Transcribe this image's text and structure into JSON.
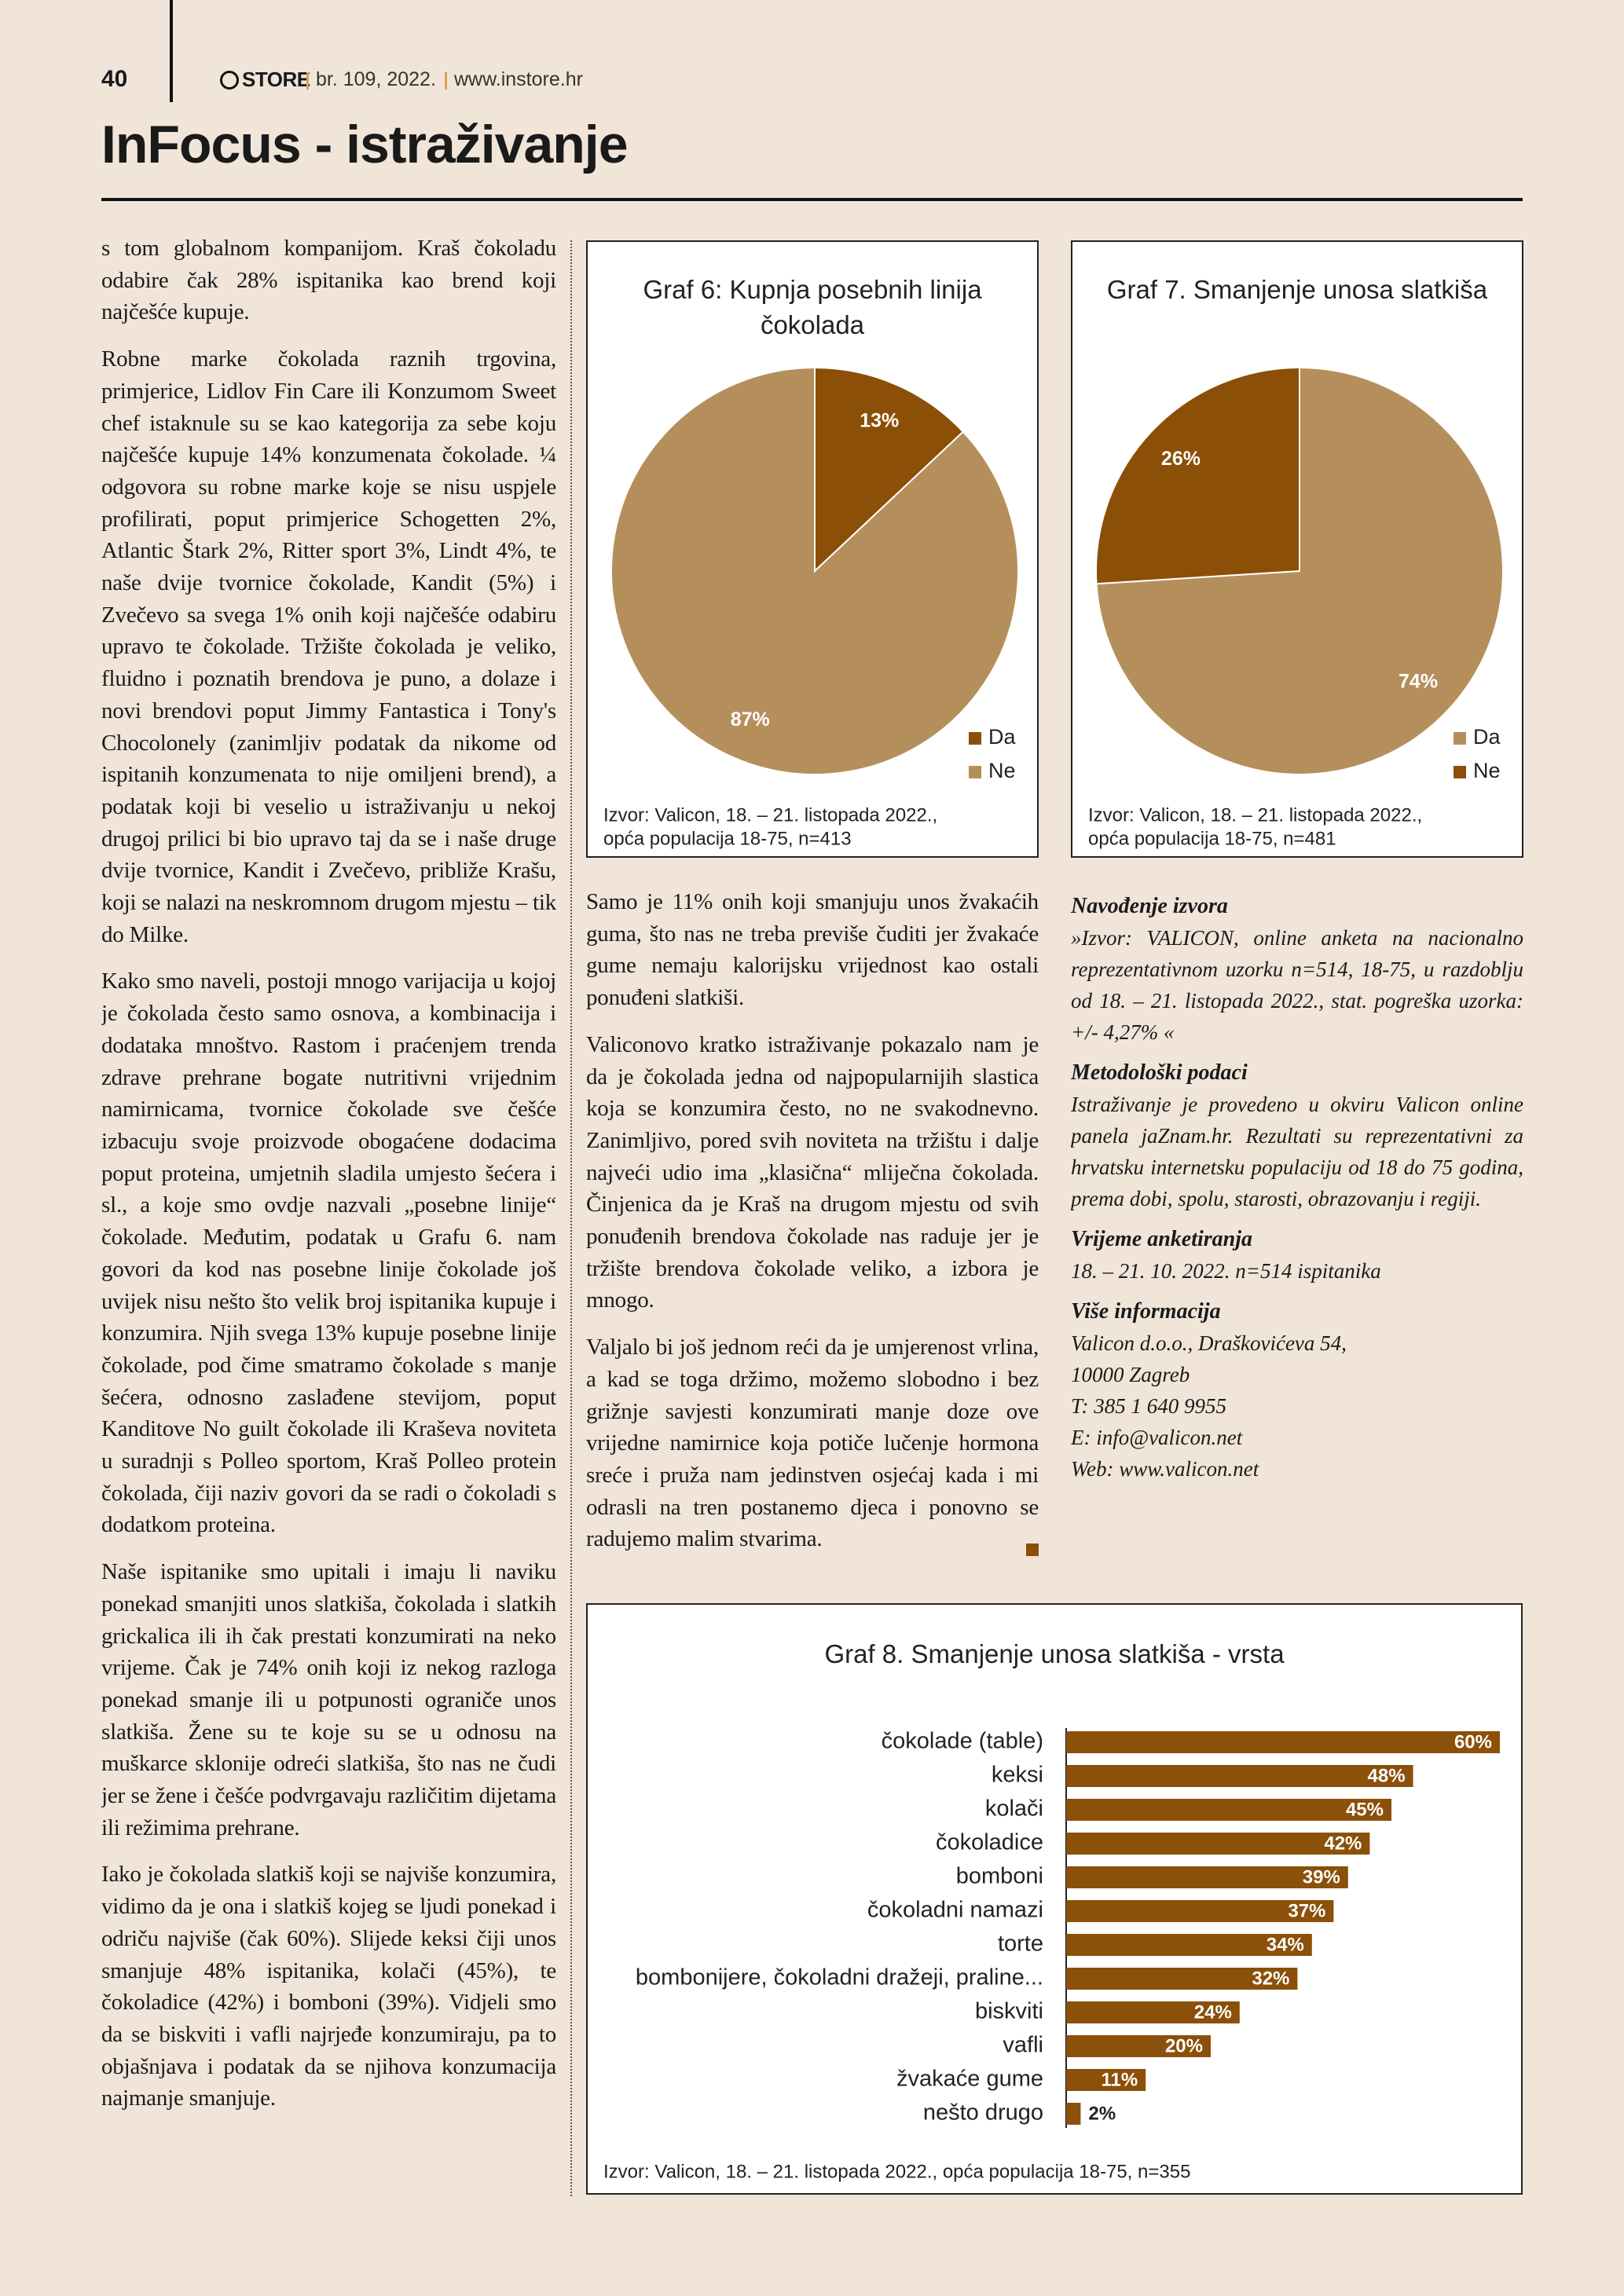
{
  "header": {
    "page_number": "40",
    "magazine": "STORE",
    "issue": "br. 109, 2022.",
    "website": "www.instore.hr",
    "section": "InFocus - istraživanje"
  },
  "left_column": {
    "paragraphs": [
      "s tom globalnom kompanijom. Kraš čokoladu odabire čak 28% ispitanika kao brend koji najčešće kupuje.",
      "Robne marke čokolada raznih trgovina, primjerice, Lidlov Fin Care ili Konzumom Sweet chef istaknule su se kao kategorija za sebe koju najčešće kupuje 14% konzumenata čokolade. ¼ odgovora su robne marke koje se nisu uspjele profilirati, poput primjerice Schogetten 2%, Atlantic Štark 2%, Ritter sport 3%, Lindt 4%, te naše dvije tvornice čokolade, Kandit (5%) i Zvečevo sa svega 1% onih koji najčešće odabiru upravo te čokolade. Tržište čokolada je veliko, fluidno i poznatih brendova je puno, a dolaze i novi brendovi poput Jimmy Fantastica i Tony's Chocolonely (zanimljiv podatak da nikome od ispitanih konzumenata to nije omiljeni brend), a podatak koji bi veselio u istraživanju u nekoj drugoj prilici bi bio upravo taj da se i naše druge dvije tvornice, Kandit i Zvečevo, približe Krašu, koji se nalazi na neskromnom drugom mjestu – tik do Milke.",
      "Kako smo naveli, postoji mnogo varijacija u kojoj je čokolada često samo osnova, a kombinacija i dodataka mnoštvo. Rastom i praćenjem trenda zdrave prehrane bogate nutritivni vrijednim namirnicama, tvornice čokolade sve češće izbacuju svoje proizvode obogaćene dodacima poput proteina, umjetnih sladila umjesto šećera i sl., a koje smo ovdje nazvali „posebne linije“ čokolade. Međutim, podatak u Grafu 6. nam govori da kod nas posebne linije čokolade još uvijek nisu nešto što velik broj ispitanika kupuje i konzumira. Njih svega 13% kupuje posebne linije čokolade, pod čime smatramo čokolade s manje šećera, odnosno zaslađene stevijom, poput Kanditove No guilt čokolade ili Kraševa noviteta u suradnji s Polleo sportom, Kraš Polleo protein čokolada, čiji naziv govori da se radi o čokoladi s dodatkom proteina.",
      "Naše ispitanike smo upitali i imaju li naviku ponekad smanjiti unos slatkiša, čokolada i slatkih grickalica ili ih čak prestati konzumirati na neko vrijeme. Čak je 74% onih koji iz nekog razloga ponekad smanje ili u potpunosti ograniče unos slatkiša. Žene su te koje su se u odnosu na muškarce sklonije odreći slatkiša, što nas ne čudi jer se žene i češće podvrgavaju različitim dijetama ili režimima prehrane.",
      "Iako je čokolada slatkiš koji se najviše konzumira, vidimo da je ona i slatkiš kojeg se ljudi ponekad i odriču najviše (čak 60%). Slijede keksi čiji unos smanjuje 48% ispitanika, kolači (45%), te čokoladice (42%) i bomboni (39%). Vidjeli smo da se biskviti i vafli najrjeđe konzumiraju, pa to objašnjava i podatak da se njihova konzumacija najmanje smanjuje."
    ]
  },
  "middle_column": {
    "paragraphs": [
      "Samo je 11% onih koji smanjuju unos žvakaćih guma, što nas ne treba previše čuditi jer žvakaće gume nemaju kalorijsku vrijednost kao ostali ponuđeni slatkiši.",
      "Valiconovo kratko istraživanje pokazalo nam je da je čokolada jedna od najpopularnijih slastica koja se konzumira često, no ne svakodnevno. Zanimljivo, pored svih noviteta na tržištu i dalje najveći udio ima „klasična“ mliječna čokolada. Činjenica da je Kraš na drugom mjestu od svih ponuđenih brendova čokolade nas raduje jer je tržište brendova čokolade veliko, a izbora je mnogo.",
      "Valjalo bi još jednom reći da je umjerenost vrlina, a kad se toga držimo, možemo slobodno i bez grižnje savjesti konzumirati manje doze ove vrijedne namirnice koja potiče lučenje hormona sreće i pruža nam jedinstven osjećaj kada i mi odrasli na tren postanemo djeca i ponovno se radujemo malim stvarima."
    ]
  },
  "info": {
    "sections": [
      {
        "heading": "Navođenje izvora",
        "lines": [
          "»Izvor: VALICON, online anketa na nacionalno reprezentativnom uzorku n=514, 18-75, u razdoblju od 18. – 21. listopada 2022., stat. pogreška uzorka: +/- 4,27% «"
        ]
      },
      {
        "heading": "Metodološki podaci",
        "lines": [
          "Istraživanje je provedeno u okviru Valicon online panela jaZnam.hr. Rezultati su reprezentativni za hrvatsku internetsku populaciju od 18 do 75 godina, prema dobi, spolu, starosti, obrazovanju i regiji."
        ]
      },
      {
        "heading": "Vrijeme anketiranja",
        "lines": [
          "18. – 21. 10. 2022. n=514 ispitanika"
        ]
      },
      {
        "heading": "Više informacija",
        "lines": [
          "Valicon d.o.o., Draškovićeva 54,",
          "10000 Zagreb",
          "T: 385 1 640 9955",
          "E: info@valicon.net",
          "Web: www.valicon.net"
        ]
      }
    ]
  },
  "chart_data": [
    {
      "type": "pie",
      "title": "Graf 6: Kupnja posebnih linija čokolada",
      "categories": [
        "Da",
        "Ne"
      ],
      "values": [
        13,
        87
      ],
      "value_labels": [
        "13%",
        "87%"
      ],
      "colors": [
        "#8b4f07",
        "#b58f5b"
      ],
      "legend": "bottom-right",
      "source": [
        "Izvor: Valicon, 18. – 21. listopada 2022.,",
        "opća populacija 18-75, n=413"
      ]
    },
    {
      "type": "pie",
      "title": "Graf 7. Smanjenje unosa slatkiša",
      "categories": [
        "Da",
        "Ne"
      ],
      "values": [
        74,
        26
      ],
      "value_labels": [
        "74%",
        "26%"
      ],
      "colors": [
        "#b58f5b",
        "#8b4f07"
      ],
      "legend": "bottom-right",
      "source": [
        "Izvor: Valicon, 18. – 21. listopada 2022.,",
        "opća populacija 18-75, n=481"
      ]
    },
    {
      "type": "bar",
      "orientation": "horizontal",
      "title": "Graf 8. Smanjenje unosa slatkiša - vrsta",
      "categories": [
        "čokolade (table)",
        "keksi",
        "kolači",
        "čokoladice",
        "bomboni",
        "čokoladni namazi",
        "torte",
        "bombonijere, čokoladni dražeji, praline...",
        "biskviti",
        "vafli",
        "žvakaće gume",
        "nešto drugo"
      ],
      "values": [
        60,
        48,
        45,
        42,
        39,
        37,
        34,
        32,
        24,
        20,
        11,
        2
      ],
      "value_labels": [
        "60%",
        "48%",
        "45%",
        "42%",
        "39%",
        "37%",
        "34%",
        "32%",
        "24%",
        "20%",
        "11%",
        "2%"
      ],
      "color": "#8b5009",
      "xlim": [
        0,
        60
      ],
      "source": [
        "Izvor: Valicon, 18. – 21. listopada 2022., opća populacija 18-75, n=355"
      ]
    }
  ]
}
